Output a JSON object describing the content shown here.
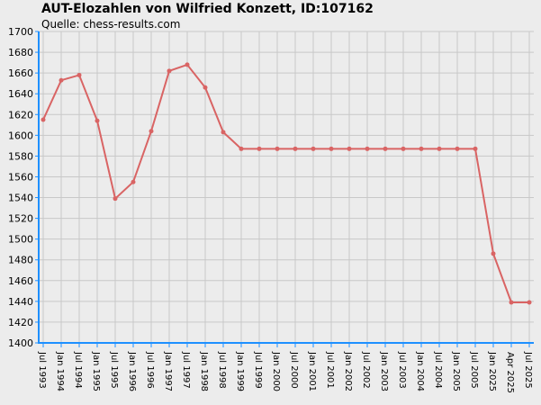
{
  "chart_data": {
    "type": "line",
    "title": "AUT-Elozahlen von Wilfried Konzett, ID:107162",
    "subtitle": "Quelle: chess-results.com",
    "categories": [
      "Jul 1993",
      "Jan 1994",
      "Jul 1994",
      "Jan 1995",
      "Jul 1995",
      "Jan 1996",
      "Jul 1996",
      "Jan 1997",
      "Jul 1997",
      "Jan 1998",
      "Jul 1998",
      "Jan 1999",
      "Jul 1999",
      "Jan 2000",
      "Jul 2000",
      "Jan 2001",
      "Jul 2001",
      "Jan 2002",
      "Jul 2002",
      "Jan 2003",
      "Jul 2003",
      "Jan 2004",
      "Jul 2004",
      "Jan 2005",
      "Jul 2005",
      "Jan 2025",
      "Apr 2025",
      "Jul 2025"
    ],
    "series": [
      {
        "name": "Elo",
        "color": "#d96464",
        "values": [
          1615,
          1653,
          1658,
          1614,
          1539,
          1555,
          1604,
          1662,
          1668,
          1646,
          1603,
          1587,
          1587,
          1587,
          1587,
          1587,
          1587,
          1587,
          1587,
          1587,
          1587,
          1587,
          1587,
          1587,
          1587,
          1486,
          1439,
          1439
        ]
      }
    ],
    "ylim": [
      1400,
      1700
    ],
    "yticks": [
      1400,
      1420,
      1440,
      1460,
      1480,
      1500,
      1520,
      1540,
      1560,
      1580,
      1600,
      1620,
      1640,
      1660,
      1680,
      1700
    ],
    "grid": true,
    "axis_color": "#1e90ff"
  }
}
